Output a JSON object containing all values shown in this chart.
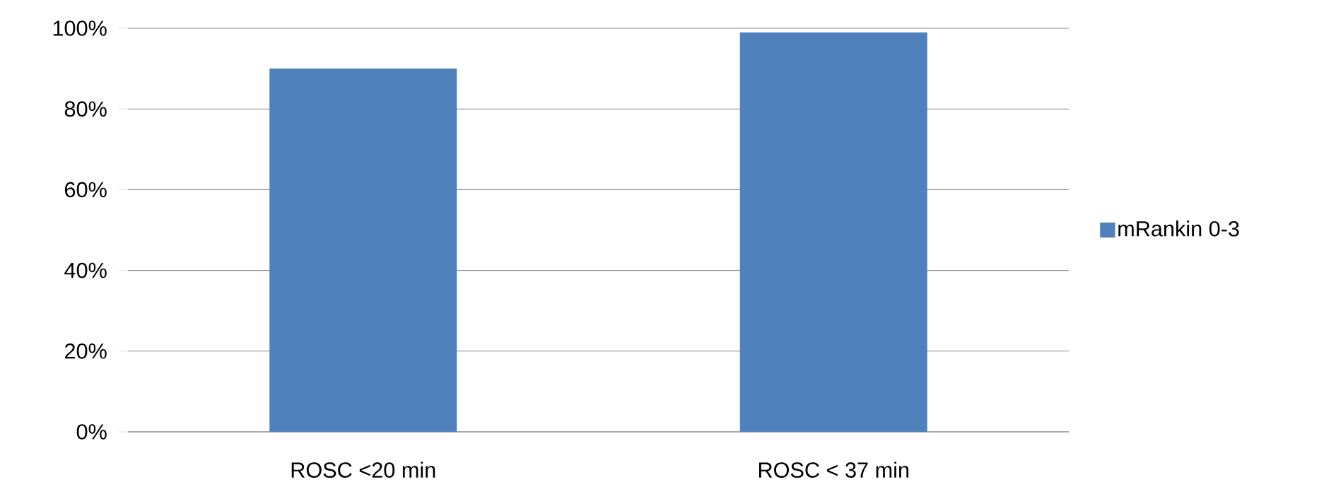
{
  "chart_data": {
    "type": "bar",
    "categories": [
      "ROSC <20 min",
      "ROSC < 37 min"
    ],
    "series": [
      {
        "name": "mRankin 0-3",
        "color": "#4f81bd",
        "values": [
          90,
          99
        ]
      }
    ],
    "ylim": [
      0,
      100
    ],
    "yticks": [
      {
        "value": 0,
        "label": "0%"
      },
      {
        "value": 20,
        "label": "20%"
      },
      {
        "value": 40,
        "label": "40%"
      },
      {
        "value": 60,
        "label": "60%"
      },
      {
        "value": 80,
        "label": "80%"
      },
      {
        "value": 100,
        "label": "100%"
      }
    ],
    "grid": "y",
    "legend": "right"
  }
}
